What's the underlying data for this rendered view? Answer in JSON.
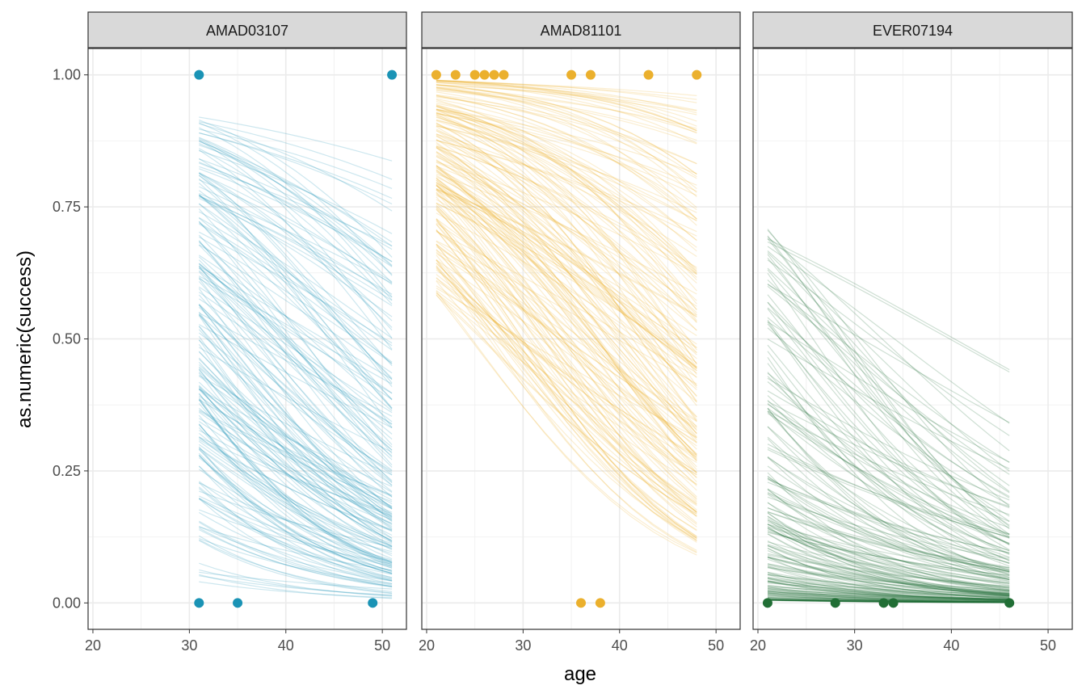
{
  "chart_data": {
    "type": "line",
    "xlabel": "age",
    "ylabel": "as.numeric(success)",
    "xlim": [
      19.5,
      52.5
    ],
    "ylim": [
      -0.05,
      1.05
    ],
    "x_ticks": [
      20,
      30,
      40,
      50
    ],
    "y_ticks": [
      0.0,
      0.25,
      0.5,
      0.75,
      1.0
    ],
    "x_tick_labels": [
      "20",
      "30",
      "40",
      "50"
    ],
    "y_tick_labels": [
      "0.00",
      "0.25",
      "0.50",
      "0.75",
      "1.00"
    ],
    "grid": true,
    "legend": "none",
    "panels": [
      {
        "strip": "AMAD03107",
        "color": "#1a93b5",
        "x_range": [
          31,
          51
        ],
        "lines_start_range": [
          0.04,
          0.92
        ],
        "n_lines": 200,
        "points": [
          {
            "x": 31,
            "y": 1
          },
          {
            "x": 51,
            "y": 1
          },
          {
            "x": 31,
            "y": 0
          },
          {
            "x": 35,
            "y": 0
          },
          {
            "x": 49,
            "y": 0
          }
        ]
      },
      {
        "strip": "AMAD81101",
        "color": "#ebb02d",
        "x_range": [
          21,
          48
        ],
        "lines_start_range": [
          0.58,
          0.99
        ],
        "n_lines": 200,
        "points": [
          {
            "x": 21,
            "y": 1
          },
          {
            "x": 23,
            "y": 1
          },
          {
            "x": 25,
            "y": 1
          },
          {
            "x": 26,
            "y": 1
          },
          {
            "x": 27,
            "y": 1
          },
          {
            "x": 28,
            "y": 1
          },
          {
            "x": 35,
            "y": 1
          },
          {
            "x": 37,
            "y": 1
          },
          {
            "x": 43,
            "y": 1
          },
          {
            "x": 48,
            "y": 1
          },
          {
            "x": 36,
            "y": 0
          },
          {
            "x": 38,
            "y": 0
          }
        ]
      },
      {
        "strip": "EVER07194",
        "color": "#216e35",
        "x_range": [
          21,
          46
        ],
        "lines_start_range": [
          0.005,
          0.72
        ],
        "n_lines": 200,
        "points": [
          {
            "x": 21,
            "y": 0
          },
          {
            "x": 28,
            "y": 0
          },
          {
            "x": 33,
            "y": 0
          },
          {
            "x": 34,
            "y": 0
          },
          {
            "x": 46,
            "y": 0
          }
        ]
      }
    ]
  }
}
